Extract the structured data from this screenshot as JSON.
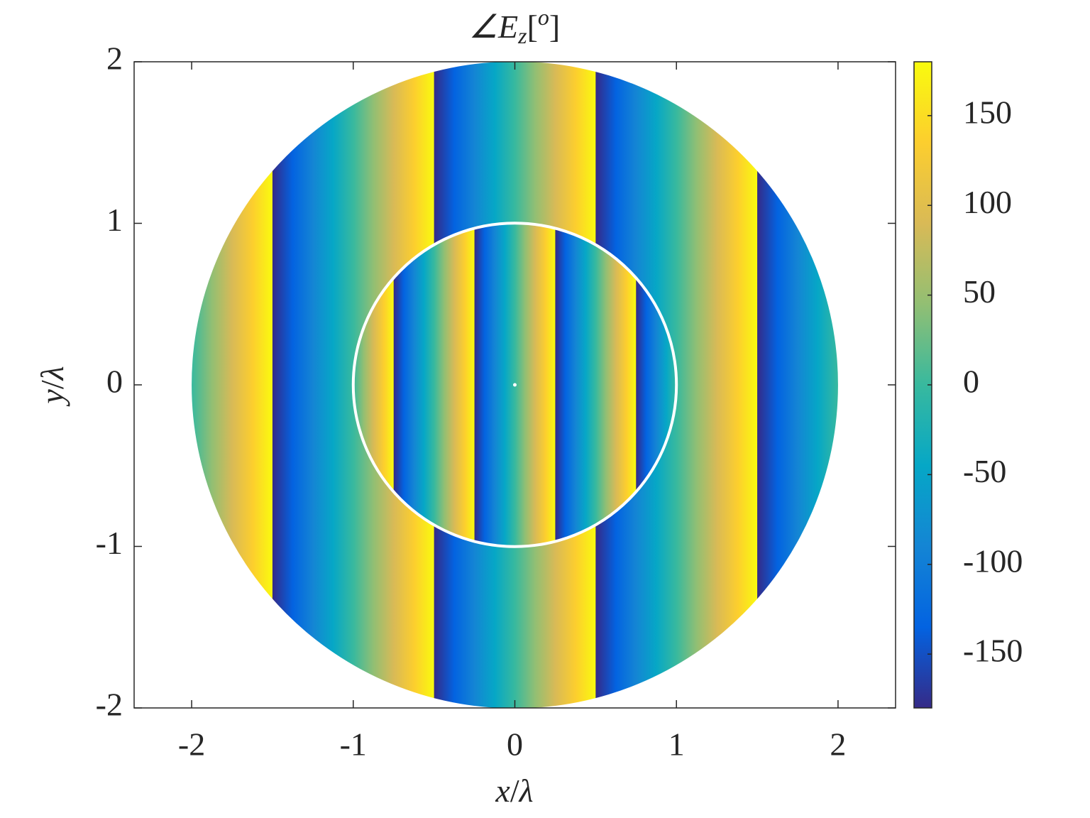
{
  "chart_data": {
    "type": "phase-map",
    "title": [
      "∠E",
      "z",
      "[",
      "o",
      "]"
    ],
    "xlabel": [
      "x",
      "/",
      "λ"
    ],
    "ylabel": [
      "y",
      "/",
      "λ"
    ],
    "xlim": [
      -2.356,
      2.356
    ],
    "xticks": [
      -2,
      -1,
      0,
      1,
      2
    ],
    "ylim": [
      -2,
      2
    ],
    "yticks": [
      -2,
      -1,
      0,
      1,
      2
    ],
    "field": {
      "outer_radius": 2,
      "inner_radius": 1,
      "outer_period": 1,
      "inner_period": 0.5,
      "inner_circle_color": "#ffffff"
    },
    "clim": [
      -180,
      180
    ],
    "cticks": [
      -150,
      -100,
      -50,
      0,
      50,
      100,
      150
    ],
    "colormap": [
      "#352a87",
      "#0363e1",
      "#1485d4",
      "#06a7c6",
      "#38b99e",
      "#92bf73",
      "#d9ba56",
      "#fcce2e",
      "#f9fb0e"
    ]
  }
}
